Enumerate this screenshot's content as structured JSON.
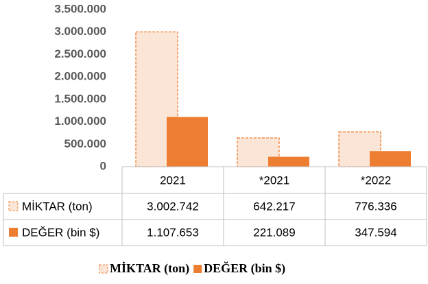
{
  "chart_data": {
    "type": "bar",
    "categories": [
      "2021",
      "*2021",
      "*2022"
    ],
    "series": [
      {
        "name": "MİKTAR (ton)",
        "color": "#fbe5d6",
        "values": [
          3002742,
          642217,
          776336
        ],
        "value_labels": [
          "3.002.742",
          "642.217",
          "776.336"
        ]
      },
      {
        "name": "DEĞER (bin $)",
        "color": "#ed7d31",
        "values": [
          1107653,
          221089,
          347594
        ],
        "value_labels": [
          "1.107.653",
          "221.089",
          "347.594"
        ]
      }
    ],
    "ylim": [
      0,
      3500000
    ],
    "yticks": [
      0,
      {
        "value": 500000,
        "label": "500.000"
      },
      {
        "value": 1000000,
        "label": "1.000.000"
      },
      {
        "value": 1500000,
        "label": "1.500.000"
      },
      {
        "value": 2000000,
        "label": "2.000.000"
      },
      {
        "value": 2500000,
        "label": "2.500.000"
      },
      {
        "value": 3000000,
        "label": "3.000.000"
      },
      {
        "value": 3500000,
        "label": "3.500.000"
      }
    ],
    "data_table": true,
    "legend": "bottom"
  }
}
